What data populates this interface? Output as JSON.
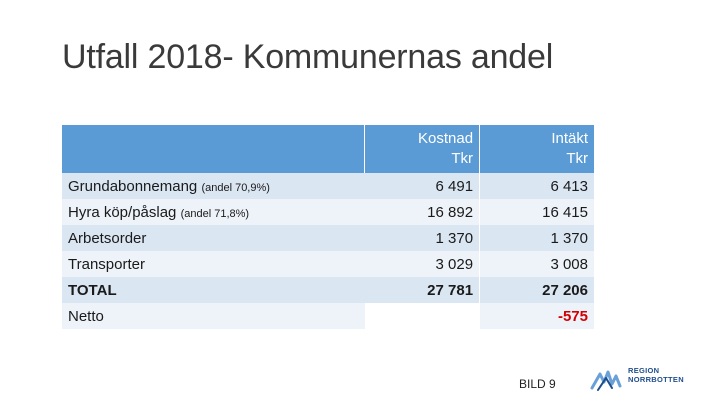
{
  "slide": {
    "title": "Utfall 2018- Kommunernas andel",
    "footer": "BILD 9"
  },
  "table": {
    "headers": {
      "label": "",
      "kostnad_line1": "Kostnad",
      "kostnad_line2": "Tkr",
      "intakt_line1": "Intäkt",
      "intakt_line2": "Tkr"
    },
    "rows": [
      {
        "label": "Grundabonnemang",
        "note": "(andel 70,9%)",
        "kostnad": "6 491",
        "intakt": "6 413"
      },
      {
        "label": "Hyra köp/påslag",
        "note": "(andel 71,8%)",
        "kostnad": "16 892",
        "intakt": "16 415"
      },
      {
        "label": "Arbetsorder",
        "note": "",
        "kostnad": "1 370",
        "intakt": "1 370"
      },
      {
        "label": "Transporter",
        "note": "",
        "kostnad": "3 029",
        "intakt": "3 008"
      }
    ],
    "total": {
      "label": "TOTAL",
      "kostnad": "27 781",
      "intakt": "27 206"
    },
    "netto": {
      "label": "Netto",
      "kostnad": "",
      "intakt": "-575"
    }
  },
  "logo": {
    "line1": "REGION",
    "line2": "NORRBOTTEN",
    "color": "#1f4e8c"
  },
  "colors": {
    "header_bg": "#5b9bd5",
    "row_dark": "#dbe6f3",
    "row_light": "#eef3f9",
    "negative": "#d20000"
  }
}
